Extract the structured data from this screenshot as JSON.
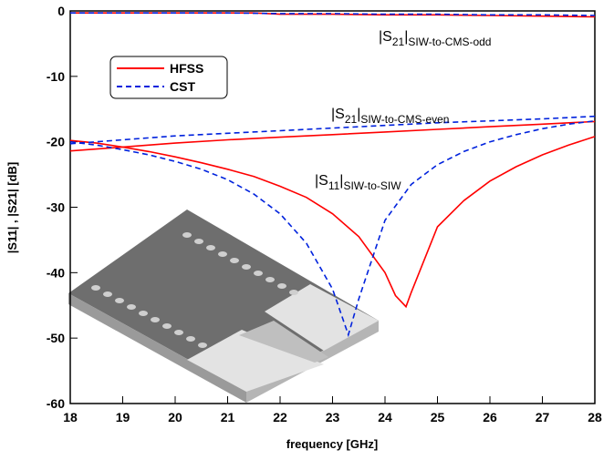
{
  "chart_data": {
    "type": "line",
    "xlabel": "frequency [GHz]",
    "ylabel": "|S11| , |S21|  [dB]",
    "xlim": [
      18,
      28
    ],
    "ylim": [
      -60,
      0
    ],
    "xticks": [
      18,
      19,
      20,
      21,
      22,
      23,
      24,
      25,
      26,
      27,
      28
    ],
    "yticks": [
      0,
      -10,
      -20,
      -30,
      -40,
      -50,
      -60
    ],
    "series": [
      {
        "name": "HFSS",
        "color": "#ff0000",
        "dashed": false,
        "curves": [
          {
            "x": [
              18,
              19,
              20,
              21,
              21.5,
              22,
              23,
              24,
              25,
              26,
              27,
              28
            ],
            "values": [
              -0.3,
              -0.3,
              -0.3,
              -0.3,
              -0.3,
              -0.5,
              -0.5,
              -0.6,
              -0.6,
              -0.7,
              -0.8,
              -0.9
            ]
          },
          {
            "x": [
              18,
              19,
              20,
              21,
              22,
              23,
              24,
              25,
              26,
              27,
              28
            ],
            "values": [
              -21.4,
              -20.8,
              -20.2,
              -19.7,
              -19.3,
              -18.9,
              -18.5,
              -18.1,
              -17.7,
              -17.3,
              -16.9
            ]
          },
          {
            "x": [
              18,
              18.5,
              19,
              19.5,
              20,
              20.5,
              21,
              21.5,
              22,
              22.5,
              23,
              23.5,
              24,
              24.2,
              24.4,
              24.5,
              25,
              25.5,
              26,
              26.5,
              27,
              27.5,
              28
            ],
            "values": [
              -19.8,
              -20.2,
              -20.8,
              -21.5,
              -22.3,
              -23.2,
              -24.2,
              -25.3,
              -26.8,
              -28.5,
              -31,
              -34.5,
              -40,
              -43.5,
              -45.2,
              -43,
              -33,
              -29,
              -26,
              -23.8,
              -22,
              -20.5,
              -19.2
            ]
          }
        ]
      },
      {
        "name": "CST",
        "color": "#0022dd",
        "dashed": true,
        "curves": [
          {
            "x": [
              18,
              19,
              20,
              21,
              22,
              23,
              24,
              25,
              26,
              27,
              28
            ],
            "values": [
              -0.3,
              -0.3,
              -0.3,
              -0.3,
              -0.4,
              -0.4,
              -0.5,
              -0.5,
              -0.6,
              -0.6,
              -0.7
            ]
          },
          {
            "x": [
              18,
              19,
              20,
              21,
              22,
              23,
              24,
              25,
              26,
              27,
              28
            ],
            "values": [
              -20.3,
              -19.7,
              -19.1,
              -18.7,
              -18.3,
              -17.9,
              -17.5,
              -17.1,
              -16.8,
              -16.5,
              -16.1
            ]
          },
          {
            "x": [
              18,
              18.5,
              19,
              19.5,
              20,
              20.5,
              21,
              21.5,
              22,
              22.5,
              23,
              23.3,
              23.5,
              24,
              24.5,
              25,
              25.5,
              26,
              26.5,
              27,
              27.5,
              28
            ],
            "values": [
              -20,
              -20.5,
              -21.2,
              -22,
              -23,
              -24.2,
              -25.8,
              -28,
              -31,
              -35.5,
              -42.5,
              -49.5,
              -44,
              -32,
              -26.5,
              -23.5,
              -21.5,
              -20,
              -18.9,
              -18,
              -17.3,
              -16.8
            ]
          }
        ]
      }
    ],
    "annotations": [
      {
        "text": "|S",
        "sub": "21",
        "text2": "|",
        "sub2": "SIW-to-CMS-odd"
      },
      {
        "text": "|S",
        "sub": "21",
        "text2": "|",
        "sub2": "SIW-to-CMS-even"
      },
      {
        "text": "|S",
        "sub": "11",
        "text2": "|",
        "sub2": "SIW-to-SIW"
      }
    ]
  }
}
